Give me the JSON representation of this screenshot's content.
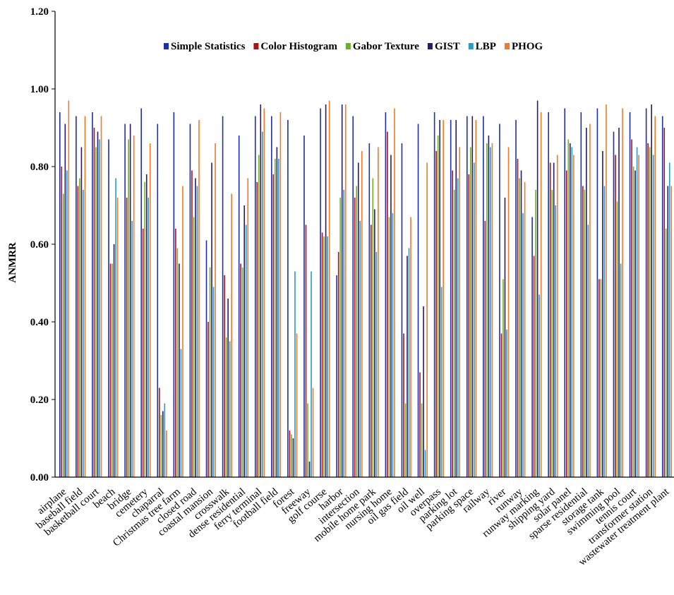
{
  "chart_data": {
    "type": "bar",
    "title": "",
    "xlabel": "",
    "ylabel": "ANMRR",
    "ylim": [
      0,
      1.2
    ],
    "yticks": [
      "0.00",
      "0.20",
      "0.40",
      "0.60",
      "0.80",
      "1.00",
      "1.20"
    ],
    "legend_position": "top-center",
    "categories": [
      "airplane",
      "baseball field",
      "basketball court",
      "beach",
      "bridge",
      "cemetery",
      "chaparral",
      "Christmas tree farm",
      "closed road",
      "coastal mansion",
      "crosswalk",
      "dense residential",
      "ferry terminal",
      "football field",
      "forest",
      "freeway",
      "golf course",
      "harbor",
      "intersection",
      "mobile home park",
      "nursing home",
      "oil gas field",
      "oil well",
      "overpass",
      "parking lot",
      "parking space",
      "railway",
      "river",
      "runway",
      "runway marking",
      "shipping yard",
      "solar panel",
      "sparse residential",
      "storage tank",
      "swimming pool",
      "tennis court",
      "transformer station",
      "wastewater treatment plant"
    ],
    "series": [
      {
        "name": "Simple Statistics",
        "color": "#1f2fa8",
        "values": [
          0.94,
          0.93,
          0.94,
          0.87,
          0.91,
          0.95,
          0.91,
          0.94,
          0.91,
          0.61,
          0.93,
          0.88,
          0.93,
          0.93,
          0.92,
          0.88,
          0.95,
          0.52,
          0.93,
          0.86,
          0.94,
          0.86,
          0.91,
          0.94,
          0.92,
          0.93,
          0.93,
          0.91,
          0.92,
          0.67,
          0.94,
          0.95,
          0.94,
          0.95,
          0.89,
          0.94,
          0.95,
          0.93
        ]
      },
      {
        "name": "Color Histogram",
        "color": "#b01010",
        "values": [
          0.8,
          0.75,
          0.9,
          0.55,
          0.72,
          0.64,
          0.23,
          0.64,
          0.79,
          0.4,
          0.52,
          0.55,
          0.76,
          0.78,
          0.12,
          0.65,
          0.63,
          0.58,
          0.72,
          0.65,
          0.89,
          0.37,
          0.27,
          0.84,
          0.79,
          0.78,
          0.66,
          0.37,
          0.82,
          0.57,
          0.81,
          0.79,
          0.75,
          0.51,
          0.83,
          0.87,
          0.86,
          0.9
        ]
      },
      {
        "name": "Gabor Texture",
        "color": "#6fae2a",
        "values": [
          0.73,
          0.77,
          0.85,
          0.55,
          0.87,
          0.76,
          0.16,
          0.59,
          0.67,
          0.54,
          0.36,
          0.54,
          0.83,
          0.82,
          0.11,
          0.19,
          0.62,
          0.72,
          0.75,
          0.77,
          0.67,
          0.19,
          0.19,
          0.88,
          0.74,
          0.85,
          0.86,
          0.51,
          0.77,
          0.74,
          0.74,
          0.87,
          0.74,
          0.51,
          0.71,
          0.8,
          0.85,
          0.64
        ]
      },
      {
        "name": "GIST",
        "color": "#2a1a6a",
        "values": [
          0.91,
          0.85,
          0.89,
          0.6,
          0.91,
          0.78,
          0.17,
          0.55,
          0.77,
          0.81,
          0.46,
          0.7,
          0.96,
          0.85,
          0.1,
          0.04,
          0.96,
          0.96,
          0.81,
          0.69,
          0.83,
          0.57,
          0.44,
          0.92,
          0.92,
          0.93,
          0.88,
          0.72,
          0.79,
          0.97,
          0.81,
          0.86,
          0.9,
          0.84,
          0.9,
          0.79,
          0.96,
          0.75
        ]
      },
      {
        "name": "LBP",
        "color": "#2b9bc4",
        "values": [
          0.79,
          0.74,
          0.87,
          0.77,
          0.66,
          0.72,
          0.19,
          0.33,
          0.75,
          0.49,
          0.35,
          0.65,
          0.89,
          0.82,
          0.53,
          0.53,
          0.62,
          0.74,
          0.66,
          0.58,
          0.68,
          0.59,
          0.07,
          0.49,
          0.77,
          0.81,
          0.85,
          0.38,
          0.68,
          0.47,
          0.7,
          0.85,
          0.65,
          0.75,
          0.55,
          0.85,
          0.83,
          0.81
        ]
      },
      {
        "name": "PHOG",
        "color": "#f07a2a",
        "values": [
          0.97,
          0.93,
          0.93,
          0.72,
          0.88,
          0.86,
          0.12,
          0.75,
          0.92,
          0.86,
          0.73,
          0.77,
          0.95,
          0.94,
          0.37,
          0.23,
          0.97,
          0.96,
          0.84,
          0.85,
          0.95,
          0.67,
          0.81,
          0.92,
          0.85,
          0.92,
          0.86,
          0.85,
          0.76,
          0.94,
          0.83,
          0.83,
          0.91,
          0.96,
          0.95,
          0.83,
          0.93,
          0.75
        ]
      }
    ]
  }
}
